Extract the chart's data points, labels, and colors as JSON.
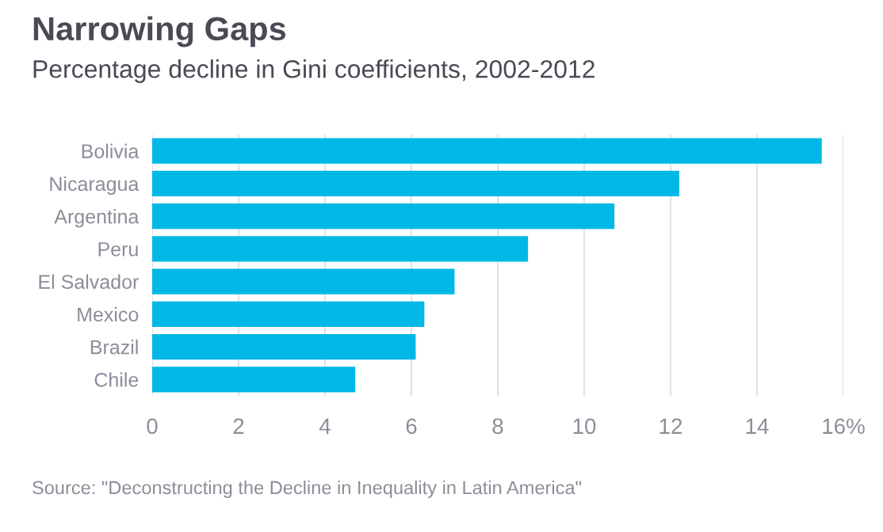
{
  "chart_data": {
    "type": "bar",
    "orientation": "horizontal",
    "title": "Narrowing Gaps",
    "subtitle": "Percentage decline in Gini coefficients, 2002-2012",
    "categories": [
      "Bolivia",
      "Nicaragua",
      "Argentina",
      "Peru",
      "El Salvador",
      "Mexico",
      "Brazil",
      "Chile"
    ],
    "values": [
      15.5,
      12.2,
      10.7,
      8.7,
      7.0,
      6.3,
      6.1,
      4.7
    ],
    "color": "#00b8e6",
    "xlim": [
      0,
      16
    ],
    "xticks": [
      0,
      2,
      4,
      6,
      8,
      10,
      12,
      14,
      {
        "value": 16,
        "label": "16%"
      }
    ],
    "grid": "x",
    "annotations": [
      "Source: \"Deconstructing the Decline in Inequality in Latin America\""
    ]
  }
}
